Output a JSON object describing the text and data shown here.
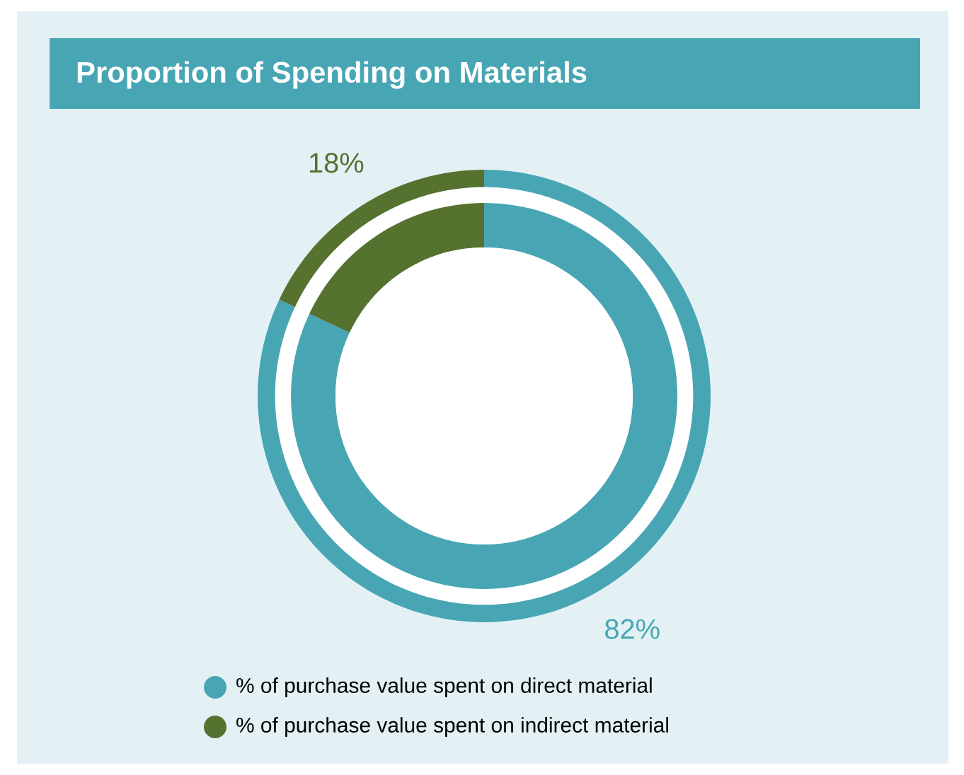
{
  "chart_data": {
    "type": "donut",
    "title": "Proportion of Spending on Materials",
    "categories": [
      "% of purchase value spent on direct material",
      "% of purchase value spent on indirect material"
    ],
    "values": [
      82,
      18
    ],
    "colors": [
      "#48a6b4",
      "#55722f"
    ],
    "value_labels": [
      "82%",
      "18%"
    ],
    "legend": "bottom"
  }
}
